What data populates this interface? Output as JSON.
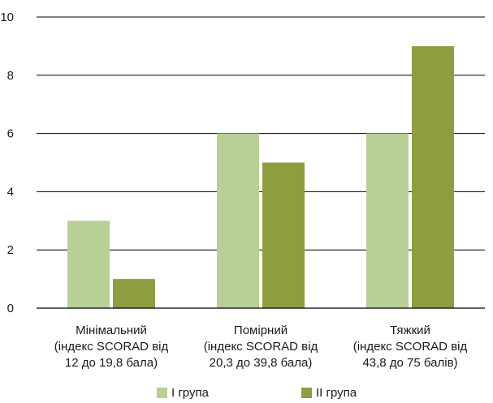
{
  "chart_data": {
    "type": "bar",
    "categories": [
      [
        "Мінімальний",
        "(індекс SCORAD від",
        "12 до 19,8 бала)"
      ],
      [
        "Помірний",
        "(індекс SCORAD від",
        "20,3 до 39,8 бала)"
      ],
      [
        "Тяжкий",
        "(індекс SCORAD від",
        "43,8 до 75 балів)"
      ]
    ],
    "series": [
      {
        "name": "I група",
        "values": [
          3,
          6,
          6
        ],
        "color": "#b8cf95"
      },
      {
        "name": "II група",
        "values": [
          1,
          5,
          9
        ],
        "color": "#8f9c3f"
      }
    ],
    "ylim": [
      0,
      10
    ],
    "yticks": [
      0,
      2,
      4,
      6,
      8,
      10
    ],
    "grid": true,
    "legend_position": "bottom"
  }
}
